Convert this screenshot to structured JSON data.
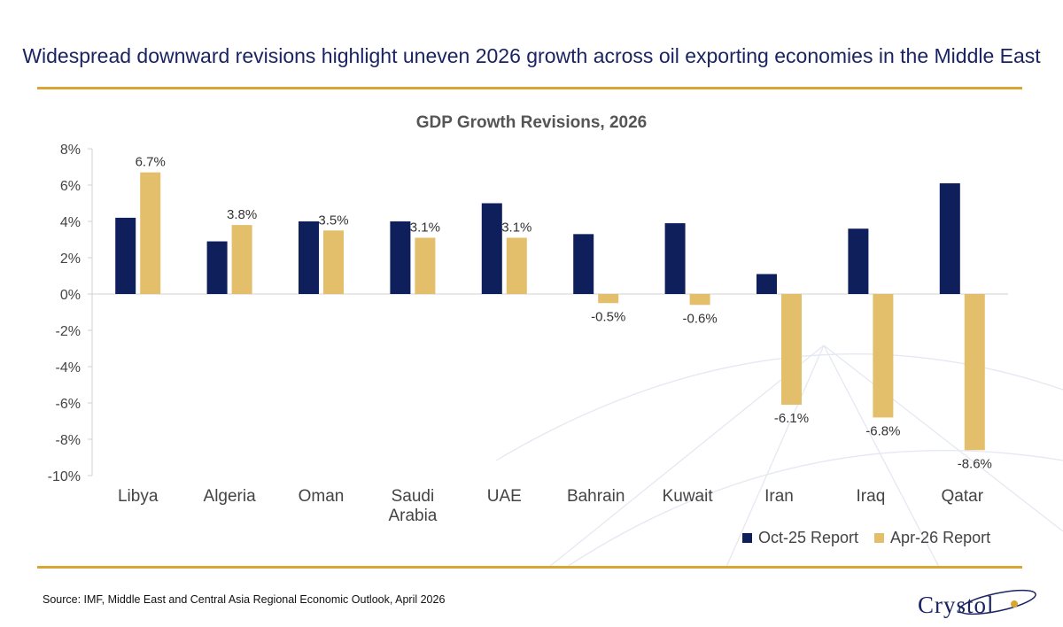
{
  "headline": "Widespread downward revisions highlight uneven 2026 growth across oil exporting economies in the Middle East",
  "source": "Source: IMF, Middle East and Central Asia Regional Economic Outlook, April 2026",
  "logo": {
    "text": "Crystol"
  },
  "colors": {
    "navy": "#0f1f5c",
    "gold": "#e3bf6b",
    "rule": "#d9a635",
    "headline": "#1b2463"
  },
  "chart_data": {
    "type": "bar",
    "title": "GDP Growth Revisions, 2026",
    "xlabel": "",
    "ylabel": "",
    "ylim": [
      -10,
      8
    ],
    "yticks": [
      8,
      6,
      4,
      2,
      0,
      -2,
      -4,
      -6,
      -8,
      -10
    ],
    "ytick_labels": [
      "8%",
      "6%",
      "4%",
      "2%",
      "0%",
      "-2%",
      "-4%",
      "-6%",
      "-8%",
      "-10%"
    ],
    "categories": [
      "Libya",
      "Algeria",
      "Oman",
      "Saudi Arabia",
      "UAE",
      "Bahrain",
      "Kuwait",
      "Iran",
      "Iraq",
      "Qatar"
    ],
    "category_labels": [
      [
        "Libya"
      ],
      [
        "Algeria"
      ],
      [
        "Oman"
      ],
      [
        "Saudi",
        "Arabia"
      ],
      [
        "UAE"
      ],
      [
        "Bahrain"
      ],
      [
        "Kuwait"
      ],
      [
        "Iran"
      ],
      [
        "Iraq"
      ],
      [
        "Qatar"
      ]
    ],
    "series": [
      {
        "name": "Oct-25 Report",
        "color": "#0f1f5c",
        "values": [
          4.2,
          2.9,
          4.0,
          4.0,
          5.0,
          3.3,
          3.9,
          1.1,
          3.6,
          6.1
        ],
        "data_labels": []
      },
      {
        "name": "Apr-26 Report",
        "color": "#e3bf6b",
        "values": [
          6.7,
          3.8,
          3.5,
          3.1,
          3.1,
          -0.5,
          -0.6,
          -6.1,
          -6.8,
          -8.6
        ],
        "data_labels": [
          "6.7%",
          "3.8%",
          "3.5%",
          "3.1%",
          "3.1%",
          "-0.5%",
          "-0.6%",
          "-6.1%",
          "-6.8%",
          "-8.6%"
        ]
      }
    ],
    "legend": "bottom-right",
    "grid": false
  }
}
